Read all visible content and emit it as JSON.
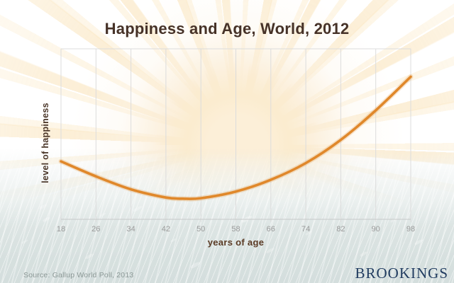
{
  "header": {
    "title": "Happiness and Age, World, 2012"
  },
  "chart": {
    "ylabel": "level of happiness",
    "xlabel": "years of age"
  },
  "footer": {
    "source": "Source: Gallup World Poll, 2013",
    "logo": "BROOKINGS"
  },
  "colors": {
    "curve": "#e0882b",
    "curve_halo": "rgba(224,136,43,0.22)",
    "grid": "#dcdcdc",
    "axis": "#c6c9c8",
    "title_text": "#463228",
    "axis_label_text": "#5a3a24",
    "y_label_text": "#4a3628",
    "tick_text": "#9b9b9b",
    "source_text": "#8d9997",
    "logo_text": "#213c60",
    "sun_ray": "#f8d9a8",
    "water": "#d5dedd"
  },
  "chart_data": {
    "type": "line",
    "title": "Happiness and Age, World, 2012",
    "xlabel": "years of age",
    "ylabel": "level of happiness",
    "x_range": [
      18,
      98
    ],
    "x_ticks": [
      18,
      26,
      34,
      42,
      50,
      58,
      66,
      74,
      82,
      90,
      98
    ],
    "y_axis": {
      "tick_labels_shown": false,
      "range": [
        0,
        1
      ]
    },
    "grid": "vertical-only",
    "legend": "none",
    "series": [
      {
        "name": "level of happiness",
        "x": [
          18,
          26,
          34,
          42,
          46,
          50,
          58,
          66,
          74,
          82,
          90,
          98
        ],
        "y": [
          0.34,
          0.252,
          0.176,
          0.128,
          0.121,
          0.124,
          0.163,
          0.232,
          0.33,
          0.466,
          0.639,
          0.836
        ],
        "shape": "u-shaped curve, minimum near age 46"
      }
    ]
  }
}
